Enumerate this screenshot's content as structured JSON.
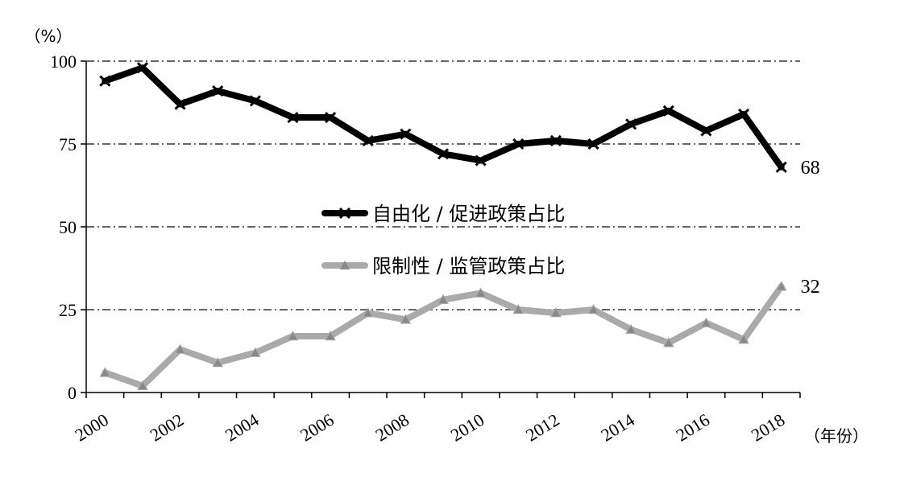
{
  "chart_data": {
    "type": "line",
    "y_unit": "（%）",
    "x_unit": "（年份）",
    "x": [
      2000,
      2001,
      2002,
      2003,
      2004,
      2005,
      2006,
      2007,
      2008,
      2009,
      2010,
      2011,
      2012,
      2013,
      2014,
      2015,
      2016,
      2017,
      2018
    ],
    "x_tick_labels": [
      "2000",
      "2002",
      "2004",
      "2006",
      "2008",
      "2010",
      "2012",
      "2014",
      "2016",
      "2018"
    ],
    "y_ticks": [
      0,
      25,
      50,
      75,
      100
    ],
    "ylim": [
      0,
      100
    ],
    "series": [
      {
        "name": "自由化 / 促进政策占比",
        "color": "#000000",
        "marker": "x",
        "values": [
          94,
          98,
          87,
          91,
          88,
          83,
          83,
          76,
          78,
          72,
          70,
          75,
          76,
          75,
          81,
          85,
          79,
          84,
          68
        ],
        "end_label": "68"
      },
      {
        "name": "限制性 / 监管政策占比",
        "color": "#aaaaaa",
        "marker": "triangle",
        "values": [
          6,
          2,
          13,
          9,
          12,
          17,
          17,
          24,
          22,
          28,
          30,
          25,
          24,
          25,
          19,
          15,
          21,
          16,
          32
        ],
        "end_label": "32"
      }
    ],
    "grid": {
      "horizontal": true,
      "style": "dash-dot"
    },
    "legend_position": "center"
  }
}
